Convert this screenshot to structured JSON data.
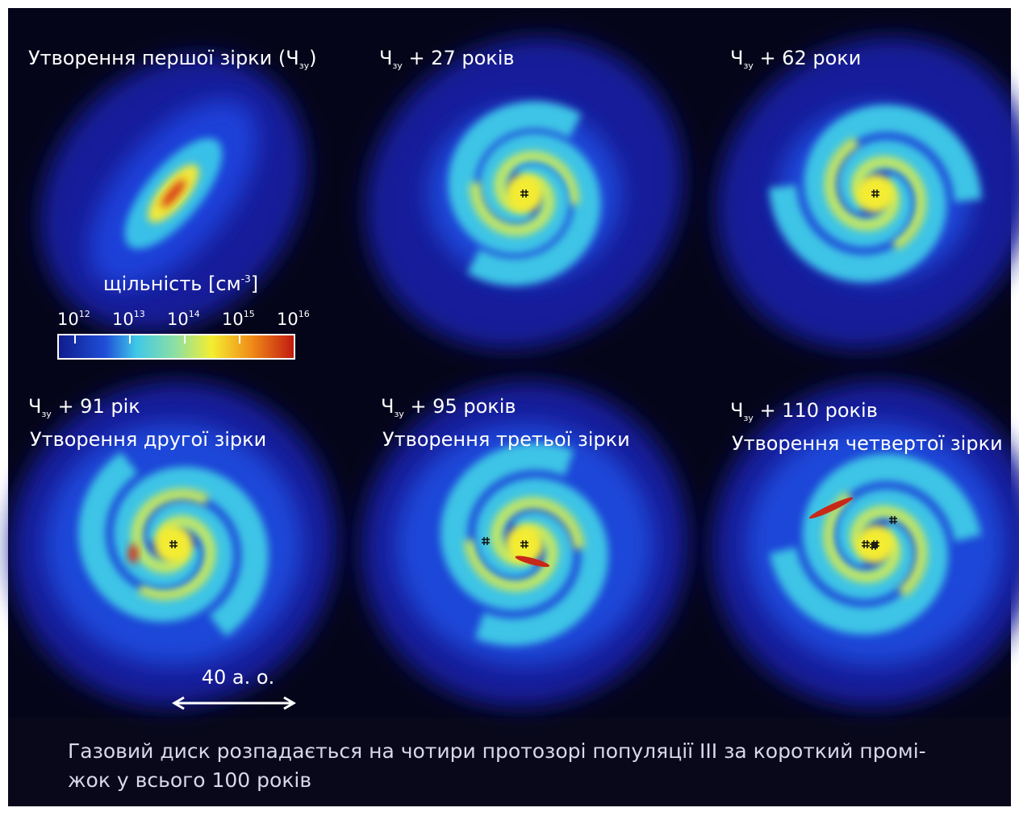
{
  "panels": [
    {
      "prefix": "Утворення першої зірки (Ч",
      "sub": "зу",
      "suffix": ")"
    },
    {
      "prefix": "Ч",
      "sub": "зу",
      "suffix": " + 27 років"
    },
    {
      "prefix": "Ч",
      "sub": "зу",
      "suffix": " + 62 роки"
    },
    {
      "prefix": "Ч",
      "sub": "зу",
      "suffix": " + 91 рік",
      "subtitle": "Утворення другої зірки"
    },
    {
      "prefix": "Ч",
      "sub": "зу",
      "suffix": " + 95 років",
      "subtitle": "Утворення третьої зірки"
    },
    {
      "prefix": "Ч",
      "sub": "зу",
      "suffix": " + 110 років",
      "subtitle": "Утворення четвертої зірки"
    }
  ],
  "colorbar": {
    "title": "щільність [см",
    "title_exp": "-3",
    "title_end": "]",
    "ticks": [
      {
        "base": "10",
        "exp": "12"
      },
      {
        "base": "10",
        "exp": "13"
      },
      {
        "base": "10",
        "exp": "14"
      },
      {
        "base": "10",
        "exp": "15"
      },
      {
        "base": "10",
        "exp": "16"
      }
    ]
  },
  "scale_bar": "40 а. о.",
  "caption": [
    "Газовий диск розпадається на чотири протозорі популяції III за короткий промі-",
    "жок у всього 100 років"
  ]
}
